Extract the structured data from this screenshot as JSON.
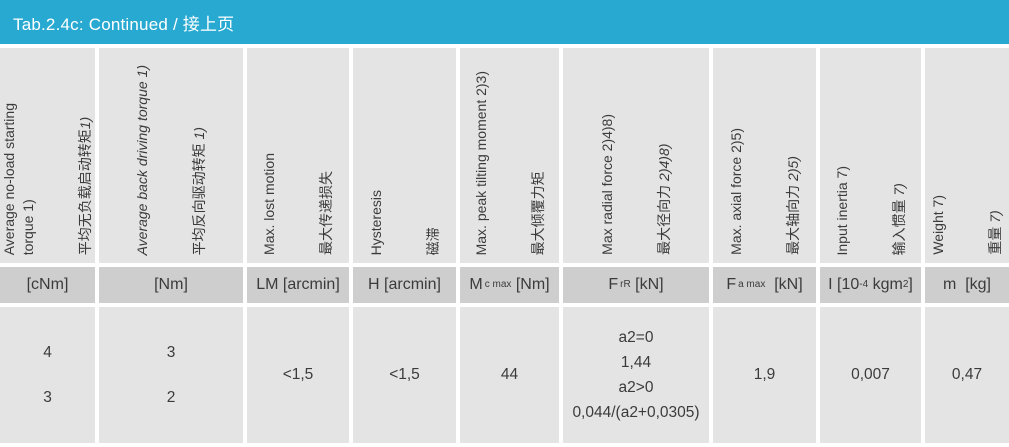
{
  "title": "Tab.2.4c: Continued / 接上页",
  "colors": {
    "accent": "#27a9d1",
    "cell_bg": "#e4e4e4",
    "units_bg": "#cecece",
    "text": "#3b3b3b",
    "title_text": "#ffffff"
  },
  "table": {
    "headers": [
      {
        "en": "Average no-load starting\ntorque 1)",
        "en_italic": false,
        "zh": "平均无负载启动转矩",
        "zh_suffix": "1)"
      },
      {
        "en": "Average back driving torque 1)",
        "en_italic": true,
        "zh": "平均反向驱动转矩 ",
        "zh_suffix": "1)"
      },
      {
        "en": "Max. lost motion",
        "en_italic": false,
        "zh": "最大传递损失",
        "zh_suffix": ""
      },
      {
        "en": "Hysteresis",
        "en_italic": false,
        "zh": "磁滞",
        "zh_suffix": ""
      },
      {
        "en": "Max. peak tilting moment 2)3)",
        "en_italic": false,
        "zh": "最大倾覆力矩",
        "zh_suffix": ""
      },
      {
        "en": "Max radial force 2)4)8)",
        "en_italic": false,
        "zh": "最大径向力 ",
        "zh_suffix": "2)4)8)"
      },
      {
        "en": "Max. axial force 2)5)",
        "en_italic": false,
        "zh": "最大轴向力 ",
        "zh_suffix": "2)5)"
      },
      {
        "en": "Input inertia 7)",
        "en_italic": false,
        "zh": "输入惯量 ",
        "zh_suffix": "7)"
      },
      {
        "en": "Weight 7)",
        "en_italic": false,
        "zh": "重量 ",
        "zh_suffix": "7)"
      }
    ],
    "units": [
      [
        {
          "t": "[cNm]"
        }
      ],
      [
        {
          "t": "[Nm]"
        }
      ],
      [
        {
          "t": "LM [arcmin]"
        }
      ],
      [
        {
          "t": "H [arcmin]"
        }
      ],
      [
        {
          "t": "M"
        },
        {
          "sub": "c max"
        },
        {
          "t": " [Nm]"
        }
      ],
      [
        {
          "t": "F"
        },
        {
          "sub": "rR"
        },
        {
          "t": " [kN]"
        }
      ],
      [
        {
          "t": "F"
        },
        {
          "sub": "a max"
        },
        {
          "t": "  [kN]"
        }
      ],
      [
        {
          "t": "I [10"
        },
        {
          "sup": "-4"
        },
        {
          "t": " kgm"
        },
        {
          "sup": "2"
        },
        {
          "t": "]"
        }
      ],
      [
        {
          "t": "m  [kg]"
        }
      ]
    ],
    "values": [
      {
        "lines": [
          "4",
          "3"
        ]
      },
      {
        "lines": [
          "3",
          "2"
        ]
      },
      {
        "lines": [
          "<1,5"
        ]
      },
      {
        "lines": [
          "<1,5"
        ]
      },
      {
        "lines": [
          "44"
        ]
      },
      {
        "lines": [
          "a2=0",
          "1,44",
          "a2>0",
          "0,044/(a2+0,0305)"
        ]
      },
      {
        "lines": [
          "1,9"
        ]
      },
      {
        "lines": [
          "0,007"
        ]
      },
      {
        "lines": [
          "0,47"
        ]
      }
    ]
  }
}
